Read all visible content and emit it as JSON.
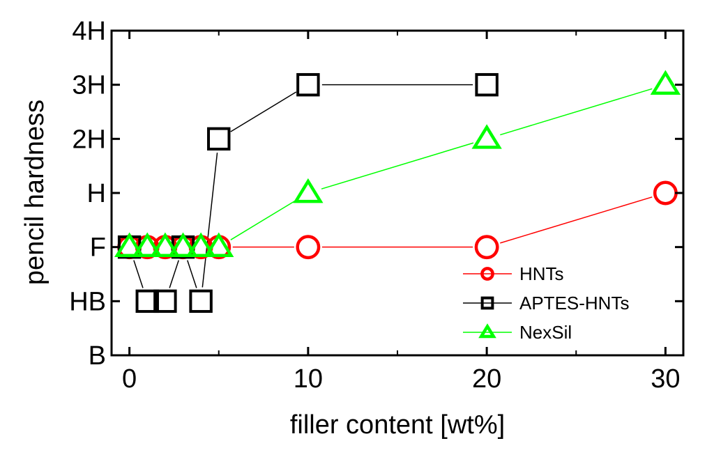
{
  "chart_data": {
    "type": "line",
    "xlabel": "filler content [wt%]",
    "ylabel": "pencil hardness",
    "xlim": [
      -1,
      31
    ],
    "ylim": [
      0,
      6
    ],
    "x_ticks": [
      0,
      10,
      20,
      30
    ],
    "y_ticks": [
      {
        "value": 0,
        "label": "B"
      },
      {
        "value": 1,
        "label": "HB"
      },
      {
        "value": 2,
        "label": "F"
      },
      {
        "value": 3,
        "label": "H"
      },
      {
        "value": 4,
        "label": "2H"
      },
      {
        "value": 5,
        "label": "3H"
      },
      {
        "value": 6,
        "label": "4H"
      }
    ],
    "legend_position": "bottom-right",
    "series": [
      {
        "name": "HNTs",
        "marker": "circle",
        "color": "#ff0000",
        "points": [
          [
            0,
            2
          ],
          [
            1,
            2
          ],
          [
            2,
            2
          ],
          [
            3,
            2
          ],
          [
            4,
            2
          ],
          [
            5,
            2
          ],
          [
            10,
            2
          ],
          [
            20,
            2
          ],
          [
            30,
            3
          ]
        ]
      },
      {
        "name": "APTES-HNTs",
        "marker": "square",
        "color": "#000000",
        "points": [
          [
            0,
            2
          ],
          [
            1,
            1
          ],
          [
            2,
            1
          ],
          [
            3,
            2
          ],
          [
            4,
            1
          ],
          [
            5,
            4
          ],
          [
            10,
            5
          ],
          [
            20,
            5
          ]
        ]
      },
      {
        "name": "NexSil",
        "marker": "triangle",
        "color": "#00ff00",
        "points": [
          [
            0,
            2
          ],
          [
            1,
            2
          ],
          [
            2,
            2
          ],
          [
            3,
            2
          ],
          [
            4,
            2
          ],
          [
            5,
            2
          ],
          [
            10,
            3
          ],
          [
            20,
            4
          ],
          [
            30,
            5
          ]
        ]
      }
    ]
  }
}
